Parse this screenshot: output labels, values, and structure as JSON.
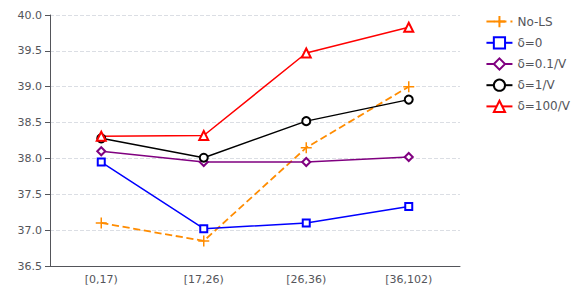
{
  "chart_data": {
    "type": "line",
    "categories": [
      "[0,17)",
      "[17,26)",
      "[26,36)",
      "[36,102)"
    ],
    "series": [
      {
        "name": "No-LS",
        "color": "#FF8C00",
        "marker": "plus",
        "line_style": "dashed",
        "values": [
          37.1,
          36.85,
          38.15,
          39.0
        ]
      },
      {
        "name": "δ=0",
        "color": "blue",
        "marker": "square",
        "line_style": "solid",
        "values": [
          37.95,
          37.02,
          37.1,
          37.33
        ]
      },
      {
        "name": "δ=0.1/V",
        "color": "purple",
        "marker": "diamond",
        "line_style": "solid",
        "values": [
          38.1,
          37.95,
          37.95,
          38.02
        ]
      },
      {
        "name": "δ=1/V",
        "color": "black",
        "marker": "circle",
        "line_style": "solid",
        "values": [
          38.28,
          38.01,
          38.52,
          38.82
        ]
      },
      {
        "name": "δ=100/V",
        "color": "red",
        "marker": "triangle",
        "line_style": "solid",
        "values": [
          38.31,
          38.32,
          39.47,
          39.83
        ]
      }
    ],
    "ylim": [
      36.5,
      40.0
    ],
    "yticks": [
      36.5,
      {
        "value": 37.0,
        "label": "37.0"
      },
      37.5,
      {
        "value": 38.0,
        "label": "38.0"
      },
      38.5,
      {
        "value": 39.0,
        "label": "39.0"
      },
      39.5,
      {
        "value": 40.0,
        "label": "40.0"
      }
    ],
    "grid": true,
    "legend": "right"
  }
}
